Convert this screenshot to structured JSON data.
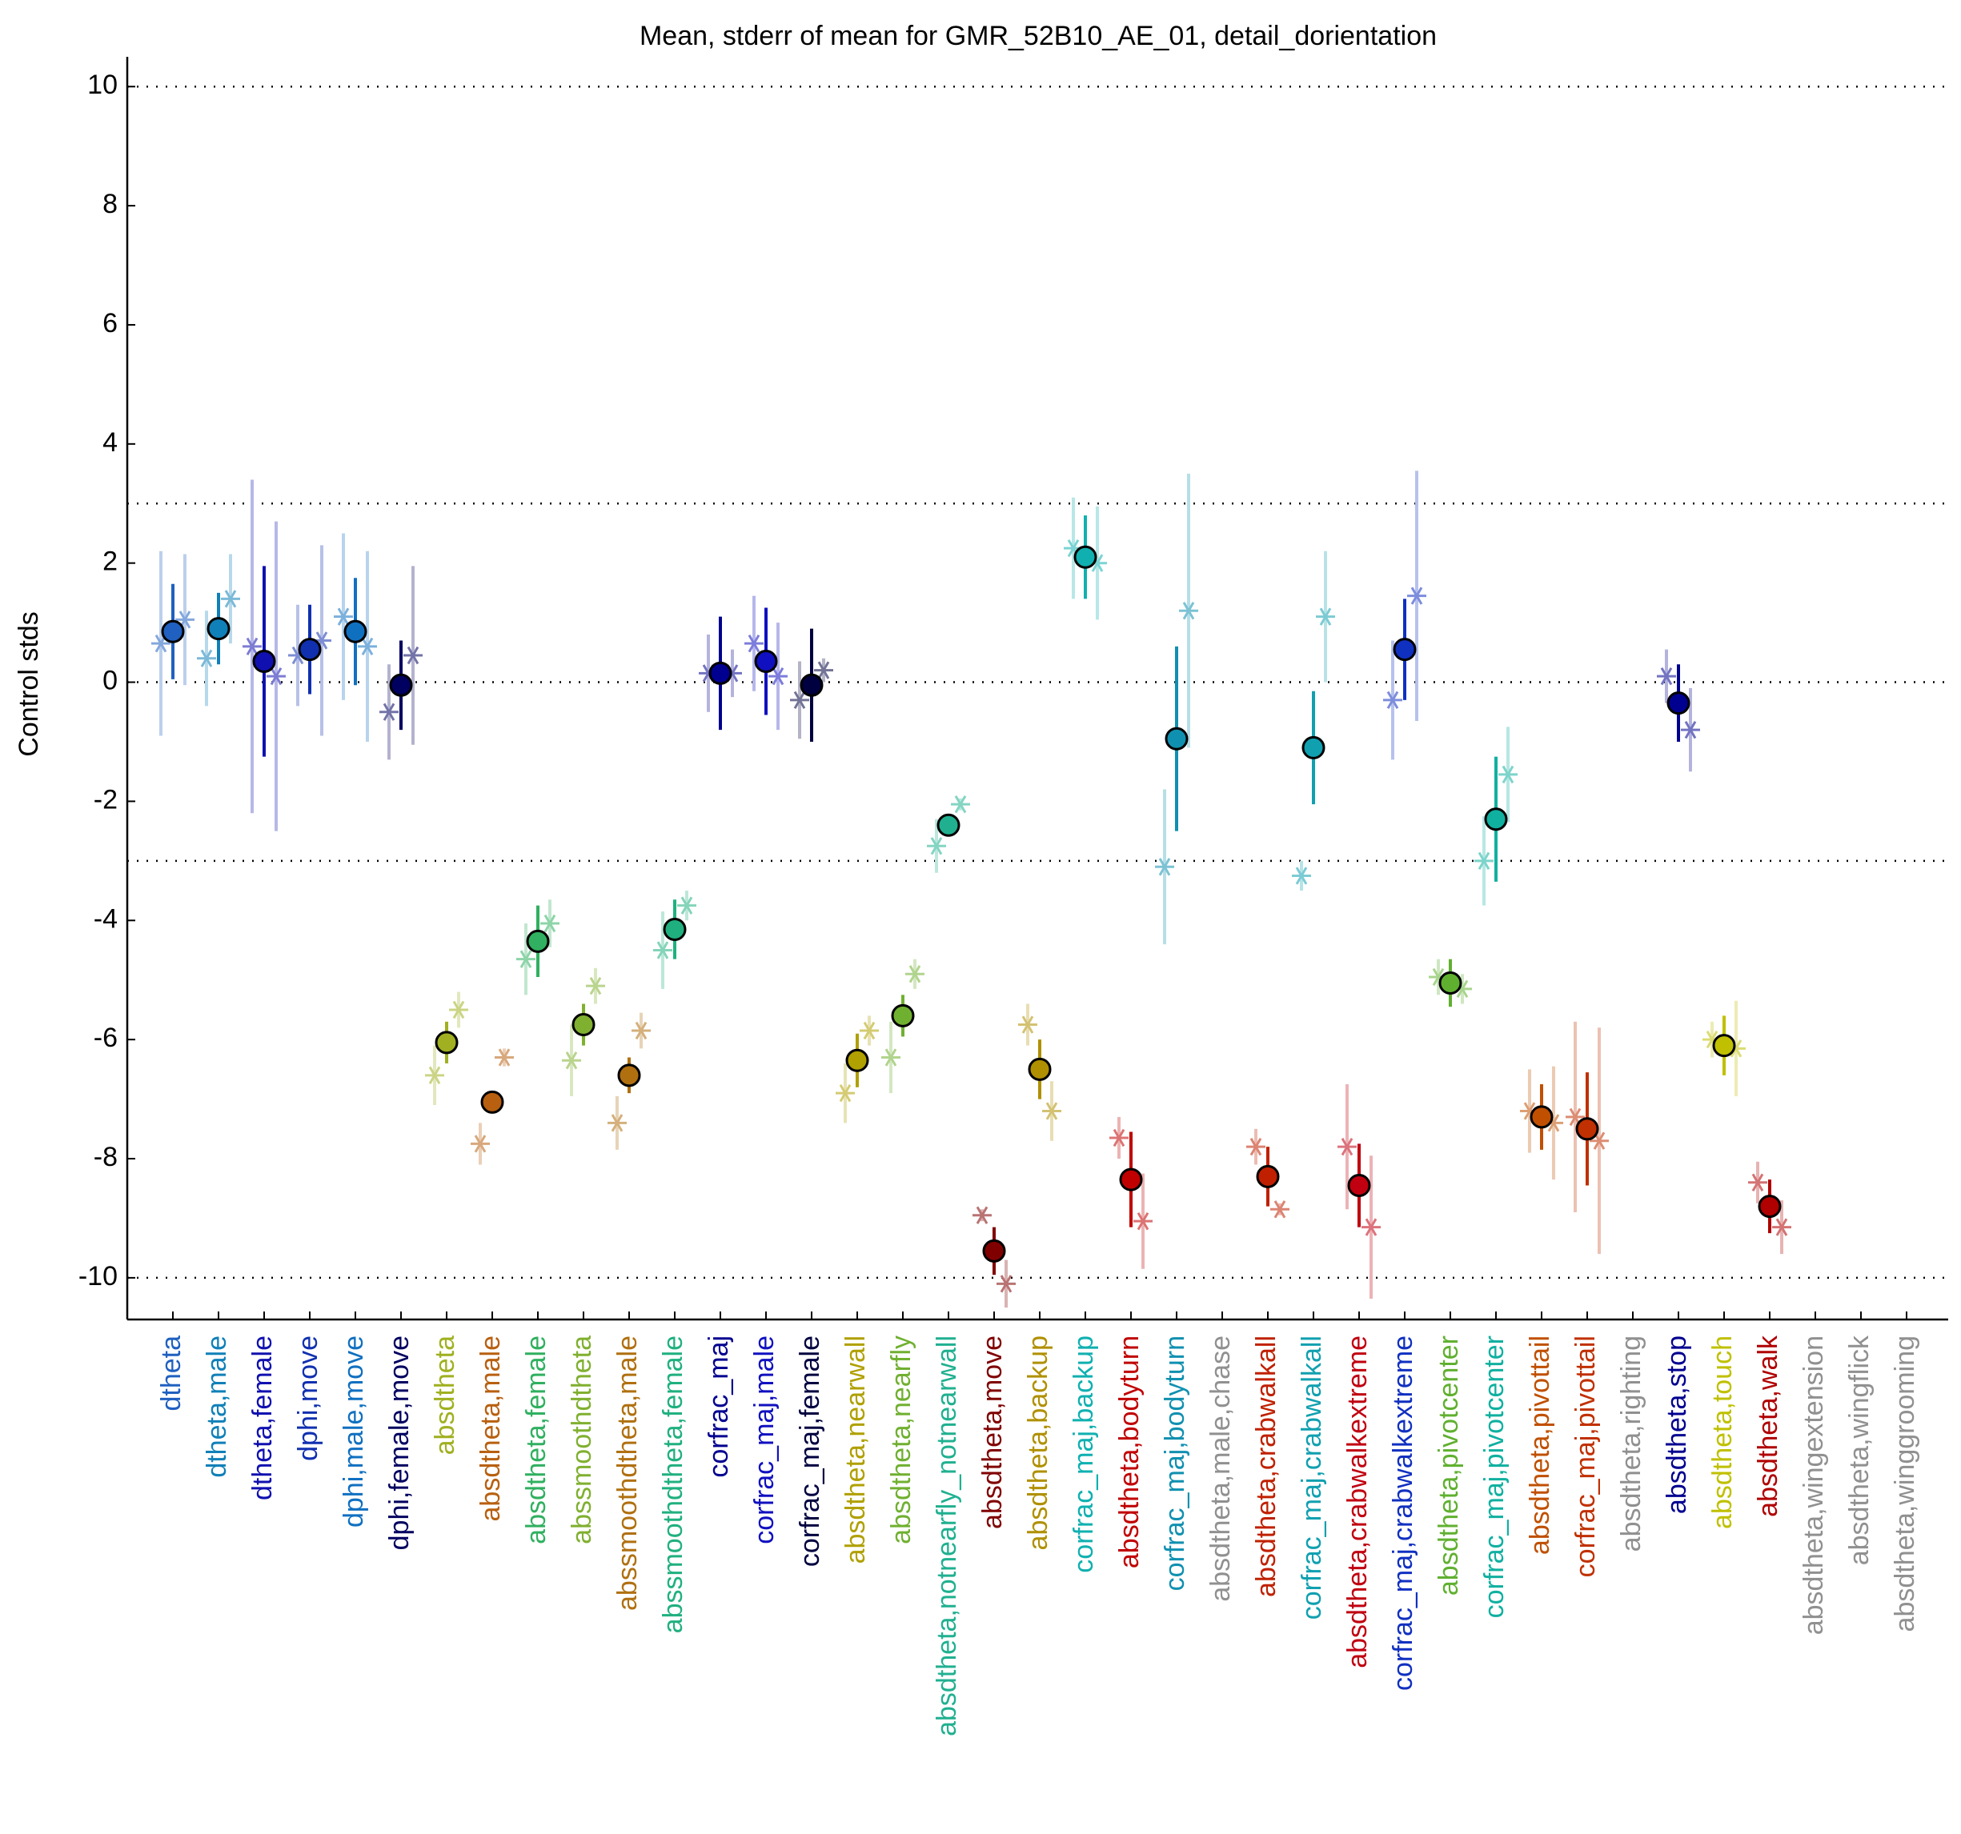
{
  "chart_data": {
    "type": "errorbar",
    "title": "Mean, stderr of mean for GMR_52B10_AE_01, detail_dorientation",
    "ylabel": "Control stds",
    "ylim": [
      -10.7,
      10.5
    ],
    "yticks": [
      -10,
      -8,
      -6,
      -4,
      -2,
      0,
      2,
      4,
      6,
      8,
      10
    ],
    "hlines": [
      10,
      3,
      0,
      -3,
      -10
    ],
    "categories": [
      "dtheta",
      "dtheta,male",
      "dtheta,female",
      "dphi,move",
      "dphi,male,move",
      "dphi,female,move",
      "absdtheta",
      "absdtheta,male",
      "absdtheta,female",
      "abssmoothdtheta",
      "abssmoothdtheta,male",
      "abssmoothdtheta,female",
      "corfrac_maj",
      "corfrac_maj,male",
      "corfrac_maj,female",
      "absdtheta,nearwall",
      "absdtheta,nearfly",
      "absdtheta,notnearfly_notnearwall",
      "absdtheta,move",
      "absdtheta,backup",
      "corfrac_maj,backup",
      "absdtheta,bodyturn",
      "corfrac_maj,bodyturn",
      "absdtheta,male,chase",
      "absdtheta,crabwalkall",
      "corfrac_maj,crabwalkall",
      "absdtheta,crabwalkextreme",
      "corfrac_maj,crabwalkextreme",
      "absdtheta,pivotcenter",
      "corfrac_maj,pivotcenter",
      "absdtheta,pivottail",
      "corfrac_maj,pivottail",
      "absdtheta,righting",
      "absdtheta,stop",
      "absdtheta,touch",
      "absdtheta,walk",
      "absdtheta,wingextension",
      "absdtheta,wingflick",
      "absdtheta,winggrooming"
    ],
    "colors": [
      "#2060c0",
      "#1080b8",
      "#1010b0",
      "#1030b0",
      "#1070c0",
      "#000060",
      "#a0b020",
      "#b86010",
      "#30b060",
      "#80b030",
      "#b07010",
      "#20b080",
      "#000090",
      "#1010c0",
      "#000040",
      "#b0a000",
      "#70b030",
      "#20b090",
      "#800000",
      "#b09000",
      "#10b0b0",
      "#c00000",
      "#1090b0",
      "#909090",
      "#c02000",
      "#10a0b0",
      "#c00010",
      "#1030c0",
      "#60b030",
      "#10b0a0",
      "#c05000",
      "#c03000",
      "#909090",
      "#000090",
      "#c0c000",
      "#b00000",
      "#909090",
      "#909090",
      "#909090"
    ],
    "values": [
      0.85,
      0.9,
      0.35,
      0.55,
      0.85,
      -0.05,
      -6.05,
      -7.05,
      -4.35,
      -5.75,
      -6.6,
      -4.15,
      0.15,
      0.35,
      -0.05,
      -6.35,
      -5.6,
      -2.4,
      -9.55,
      -6.5,
      2.1,
      -8.35,
      -0.95,
      null,
      -8.3,
      -1.1,
      -8.45,
      0.55,
      -5.05,
      -2.3,
      -7.3,
      -7.5,
      null,
      -0.35,
      -6.1,
      -8.8,
      null,
      null,
      null
    ],
    "errors": [
      0.8,
      0.6,
      1.6,
      0.75,
      0.9,
      0.75,
      0.35,
      0.1,
      0.6,
      0.35,
      0.3,
      0.5,
      0.95,
      0.9,
      0.95,
      0.45,
      0.35,
      0.1,
      0.4,
      0.5,
      0.7,
      0.8,
      1.55,
      null,
      0.5,
      0.95,
      0.7,
      0.85,
      0.4,
      1.05,
      0.55,
      0.95,
      null,
      0.65,
      0.5,
      0.45,
      null,
      null,
      null
    ],
    "left_values": [
      0.65,
      0.4,
      0.6,
      0.45,
      1.1,
      -0.5,
      -6.6,
      -7.75,
      -4.65,
      -6.35,
      -7.4,
      -4.5,
      0.15,
      0.65,
      -0.3,
      -6.9,
      -6.3,
      -2.75,
      -8.95,
      -5.75,
      2.25,
      -7.65,
      -3.1,
      null,
      -7.8,
      -3.25,
      -7.8,
      -0.3,
      -4.95,
      -3.0,
      -7.2,
      -7.3,
      null,
      0.1,
      -6.0,
      -8.4,
      null,
      null,
      null
    ],
    "left_errors": [
      1.55,
      0.8,
      2.8,
      0.85,
      1.4,
      0.8,
      0.5,
      0.35,
      0.6,
      0.6,
      0.45,
      0.65,
      0.65,
      0.8,
      0.65,
      0.5,
      0.6,
      0.45,
      0.1,
      0.35,
      0.85,
      0.35,
      1.3,
      null,
      0.3,
      0.25,
      1.05,
      1.0,
      0.3,
      0.75,
      0.7,
      1.6,
      null,
      0.45,
      0.3,
      0.35,
      null,
      null,
      null
    ],
    "right_values": [
      1.05,
      1.4,
      0.1,
      0.7,
      0.6,
      0.45,
      -5.5,
      -6.3,
      -4.05,
      -5.1,
      -5.85,
      -3.75,
      0.15,
      0.1,
      0.2,
      -5.85,
      -4.9,
      -2.05,
      -10.1,
      -7.2,
      2.0,
      -9.05,
      1.2,
      null,
      -8.85,
      1.1,
      -9.15,
      1.45,
      -5.15,
      -1.55,
      -7.4,
      -7.7,
      null,
      -0.8,
      -6.15,
      -9.15,
      null,
      null,
      null
    ],
    "right_errors": [
      1.1,
      0.75,
      2.6,
      1.6,
      1.6,
      1.5,
      0.3,
      0.15,
      0.4,
      0.3,
      0.3,
      0.25,
      0.4,
      0.9,
      0.2,
      0.25,
      0.25,
      0.1,
      0.4,
      0.5,
      0.95,
      0.8,
      2.3,
      null,
      0.1,
      1.1,
      1.2,
      2.1,
      0.25,
      0.8,
      0.95,
      1.9,
      null,
      0.7,
      0.8,
      0.45,
      null,
      null,
      null
    ]
  }
}
